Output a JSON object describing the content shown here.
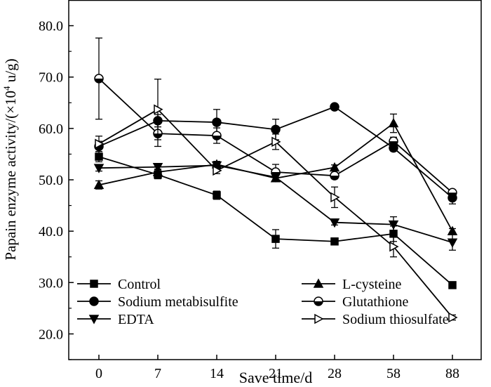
{
  "chart_data": {
    "type": "line",
    "title": "",
    "xlabel": "Save time/d",
    "ylabel": "Papain enzyme activity/(×10",
    "ylabel_sup": "4",
    "ylabel_unit": " u/g)",
    "categories": [
      "0",
      "7",
      "14",
      "21",
      "28",
      "58",
      "88"
    ],
    "ylim": [
      15,
      85
    ],
    "yticks": [
      "20.0",
      "30.0",
      "40.0",
      "50.0",
      "60.0",
      "70.0",
      "80.0"
    ],
    "grid": false,
    "legend_position": "bottom-left, two columns",
    "series": [
      {
        "name": "Control",
        "marker": "square",
        "values": [
          54.5,
          51.0,
          47.0,
          38.5,
          38.0,
          39.5,
          29.5
        ],
        "errors": [
          1.0,
          0.8,
          0.8,
          1.8,
          0.4,
          1.5,
          0.6
        ]
      },
      {
        "name": "Sodium metabisulfite",
        "marker": "circle",
        "values": [
          56.5,
          61.5,
          61.2,
          59.8,
          64.2,
          56.2,
          46.5
        ],
        "errors": [
          1.0,
          1.2,
          2.5,
          2.0,
          0.5,
          0.6,
          1.2
        ]
      },
      {
        "name": "EDTA",
        "marker": "triangle-down",
        "values": [
          52.3,
          52.5,
          52.8,
          50.5,
          41.7,
          41.3,
          37.8
        ],
        "errors": [
          0.6,
          0.5,
          0.6,
          0.8,
          0.5,
          1.5,
          1.5
        ]
      },
      {
        "name": "L-cysteine",
        "marker": "triangle-up",
        "values": [
          49.0,
          51.5,
          53.0,
          50.3,
          52.4,
          61.0,
          40.0
        ],
        "errors": [
          0.8,
          0.6,
          0.6,
          0.6,
          0.5,
          1.8,
          0.5
        ]
      },
      {
        "name": "Glutathione",
        "marker": "circle-half",
        "values": [
          69.7,
          59.0,
          58.6,
          51.5,
          50.8,
          57.5,
          47.5
        ],
        "errors": [
          7.9,
          2.5,
          1.5,
          1.5,
          0.6,
          0.8,
          0.5
        ]
      },
      {
        "name": "Sodium thiosulfate",
        "marker": "triangle-right",
        "values": [
          57.0,
          63.7,
          51.8,
          57.4,
          46.6,
          37.0,
          23.2
        ],
        "errors": [
          1.5,
          5.9,
          0.6,
          1.5,
          2.0,
          2.0,
          0.5
        ]
      }
    ]
  }
}
